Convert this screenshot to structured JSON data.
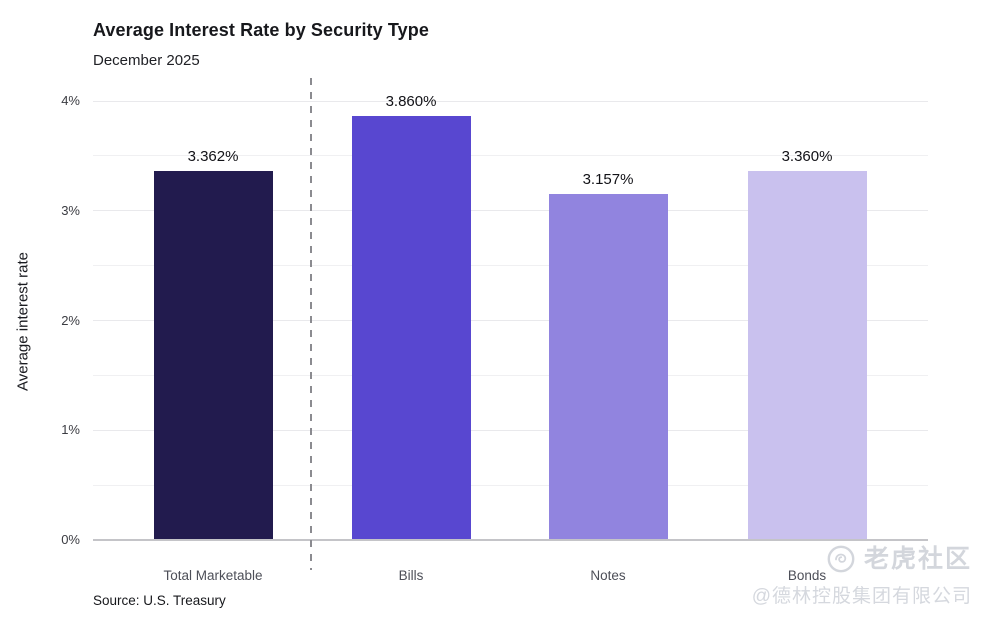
{
  "chart_data": {
    "type": "bar",
    "title": "Average Interest Rate by Security Type",
    "subtitle": "December 2025",
    "categories": [
      "Total Marketable",
      "Bills",
      "Notes",
      "Bonds"
    ],
    "values": [
      3.362,
      3.86,
      3.157,
      3.36
    ],
    "value_labels": [
      "3.362%",
      "3.860%",
      "3.157%",
      "3.360%"
    ],
    "bar_colors": [
      "#221b4e",
      "#5847d0",
      "#9184df",
      "#c9c1ee"
    ],
    "ylabel": "Average interest rate",
    "xlabel": "",
    "ylim": [
      0,
      4
    ],
    "ytick_interval": 1,
    "ytick_labels": [
      "0%",
      "1%",
      "2%",
      "3%",
      "4%"
    ],
    "minor_grid_interval": 0.5,
    "grid": true,
    "legend": "none",
    "separator": "dashed vertical line between first bar and the rest",
    "source": "Source: U.S. Treasury"
  },
  "watermark": {
    "logo_icon": "tiger-community-logo",
    "line1": "老虎社区",
    "line2": "@德林控股集团有限公司"
  }
}
